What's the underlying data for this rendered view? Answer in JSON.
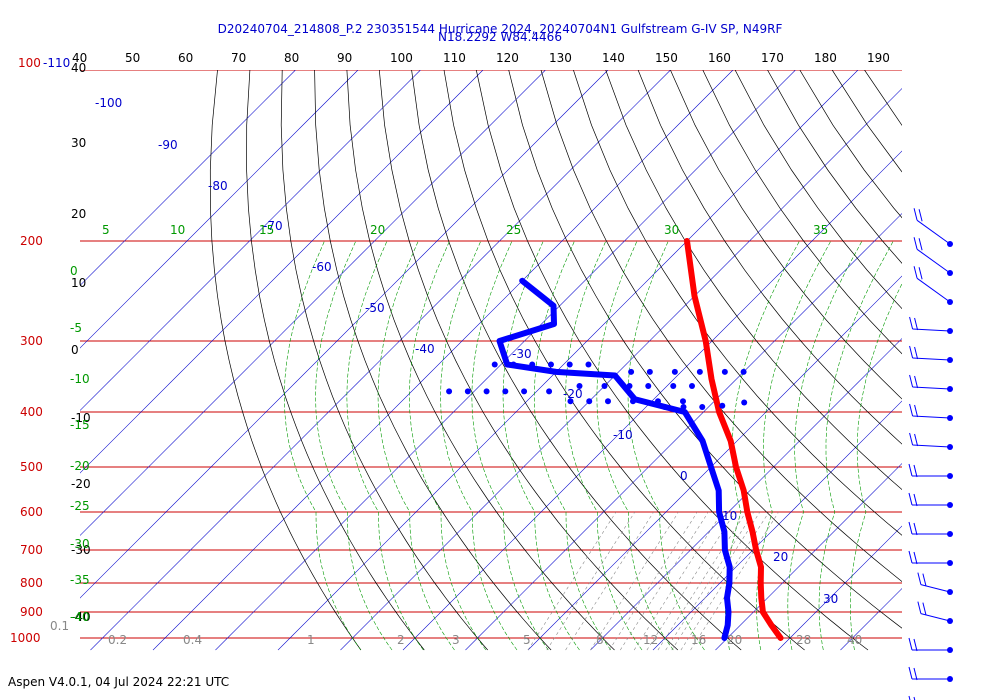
{
  "header": {
    "title_line1": "D20240704_214808_P.2 230351544 Hurricane 2024, 20240704N1 Gulfstream G-IV SP, N49RF",
    "title_line2": "N18.2292 W84.4466"
  },
  "footer": {
    "text": "Aspen V4.0.1, 04 Jul 2024  22:21 UTC"
  },
  "chart_data": {
    "type": "skew-t",
    "pressure_label_top": "100-110",
    "pressure_levels": [
      200,
      300,
      400,
      500,
      600,
      700,
      800,
      900,
      1000
    ],
    "top_temp_ticks": [
      40,
      50,
      60,
      70,
      80,
      90,
      100,
      110,
      120,
      130,
      140,
      150,
      160,
      170,
      180,
      190
    ],
    "left_height_ticks": [
      "40",
      "30",
      "20",
      "10",
      "0",
      "-10",
      "-20",
      "-30",
      "-40"
    ],
    "isotherm_labels": [
      "-100",
      "-90",
      "-80",
      "-70",
      "-60",
      "-50",
      "-40",
      "-30",
      "-20",
      "-10",
      "0",
      "10",
      "20",
      "30"
    ],
    "theta_e_labels_top": [
      "5",
      "10",
      "15",
      "20",
      "25",
      "30",
      "35"
    ],
    "theta_e_labels_left": [
      "0",
      "-5",
      "-10",
      "-15",
      "-20",
      "-25",
      "-30",
      "-35",
      "-40"
    ],
    "mixing_ratio_labels": [
      "0.1",
      "0.2",
      "0.4",
      "1",
      "2",
      "3",
      "5",
      "8",
      "12",
      "16",
      "20",
      "28",
      "40"
    ],
    "temperature_profile": [
      {
        "p": 200,
        "t": -50
      },
      {
        "p": 250,
        "t": -40
      },
      {
        "p": 300,
        "t": -31
      },
      {
        "p": 350,
        "t": -24
      },
      {
        "p": 400,
        "t": -17.5
      },
      {
        "p": 450,
        "t": -11
      },
      {
        "p": 500,
        "t": -6
      },
      {
        "p": 550,
        "t": -1
      },
      {
        "p": 600,
        "t": 3
      },
      {
        "p": 650,
        "t": 7
      },
      {
        "p": 700,
        "t": 10.5
      },
      {
        "p": 750,
        "t": 14
      },
      {
        "p": 800,
        "t": 16.5
      },
      {
        "p": 850,
        "t": 19
      },
      {
        "p": 900,
        "t": 21.5
      },
      {
        "p": 950,
        "t": 25
      },
      {
        "p": 1000,
        "t": 28.5
      }
    ],
    "dewpoint_profile": [
      {
        "p": 235,
        "t": -70
      },
      {
        "p": 260,
        "t": -61
      },
      {
        "p": 280,
        "t": -58
      },
      {
        "p": 300,
        "t": -64
      },
      {
        "p": 330,
        "t": -59
      },
      {
        "p": 340,
        "t": -50
      },
      {
        "p": 345,
        "t": -40
      },
      {
        "p": 380,
        "t": -33
      },
      {
        "p": 400,
        "t": -23
      },
      {
        "p": 450,
        "t": -15.5
      },
      {
        "p": 500,
        "t": -10
      },
      {
        "p": 550,
        "t": -5
      },
      {
        "p": 600,
        "t": -1.5
      },
      {
        "p": 650,
        "t": 2.5
      },
      {
        "p": 700,
        "t": 5.5
      },
      {
        "p": 750,
        "t": 9
      },
      {
        "p": 800,
        "t": 11.5
      },
      {
        "p": 850,
        "t": 13.5
      },
      {
        "p": 900,
        "t": 16
      },
      {
        "p": 950,
        "t": 18
      },
      {
        "p": 1000,
        "t": 19.5
      }
    ],
    "dewpoint_scatter": [
      {
        "p": 330,
        "t": -61
      },
      {
        "p": 330,
        "t": -58
      },
      {
        "p": 330,
        "t": -55
      },
      {
        "p": 330,
        "t": -52
      },
      {
        "p": 330,
        "t": -49
      },
      {
        "p": 330,
        "t": -46
      },
      {
        "p": 340,
        "t": -38
      },
      {
        "p": 340,
        "t": -35
      },
      {
        "p": 340,
        "t": -31
      },
      {
        "p": 340,
        "t": -27
      },
      {
        "p": 340,
        "t": -23
      },
      {
        "p": 340,
        "t": -20
      },
      {
        "p": 368,
        "t": -64
      },
      {
        "p": 368,
        "t": -61
      },
      {
        "p": 368,
        "t": -58
      },
      {
        "p": 368,
        "t": -55
      },
      {
        "p": 368,
        "t": -52
      },
      {
        "p": 368,
        "t": -48
      },
      {
        "p": 360,
        "t": -44
      },
      {
        "p": 360,
        "t": -40
      },
      {
        "p": 360,
        "t": -36
      },
      {
        "p": 360,
        "t": -33
      },
      {
        "p": 360,
        "t": -29
      },
      {
        "p": 360,
        "t": -26
      },
      {
        "p": 383,
        "t": -43
      },
      {
        "p": 383,
        "t": -40
      },
      {
        "p": 383,
        "t": -37
      },
      {
        "p": 383,
        "t": -33
      },
      {
        "p": 383,
        "t": -29
      },
      {
        "p": 383,
        "t": -25
      },
      {
        "p": 392,
        "t": -27
      },
      {
        "p": 392,
        "t": -24
      },
      {
        "p": 392,
        "t": -21
      },
      {
        "p": 390,
        "t": -18
      },
      {
        "p": 385,
        "t": -15
      }
    ],
    "wind_barb_levels": [
      200,
      240,
      280,
      320,
      360,
      400,
      440,
      480,
      520,
      560,
      620,
      680,
      740,
      800,
      860,
      920,
      980
    ]
  }
}
